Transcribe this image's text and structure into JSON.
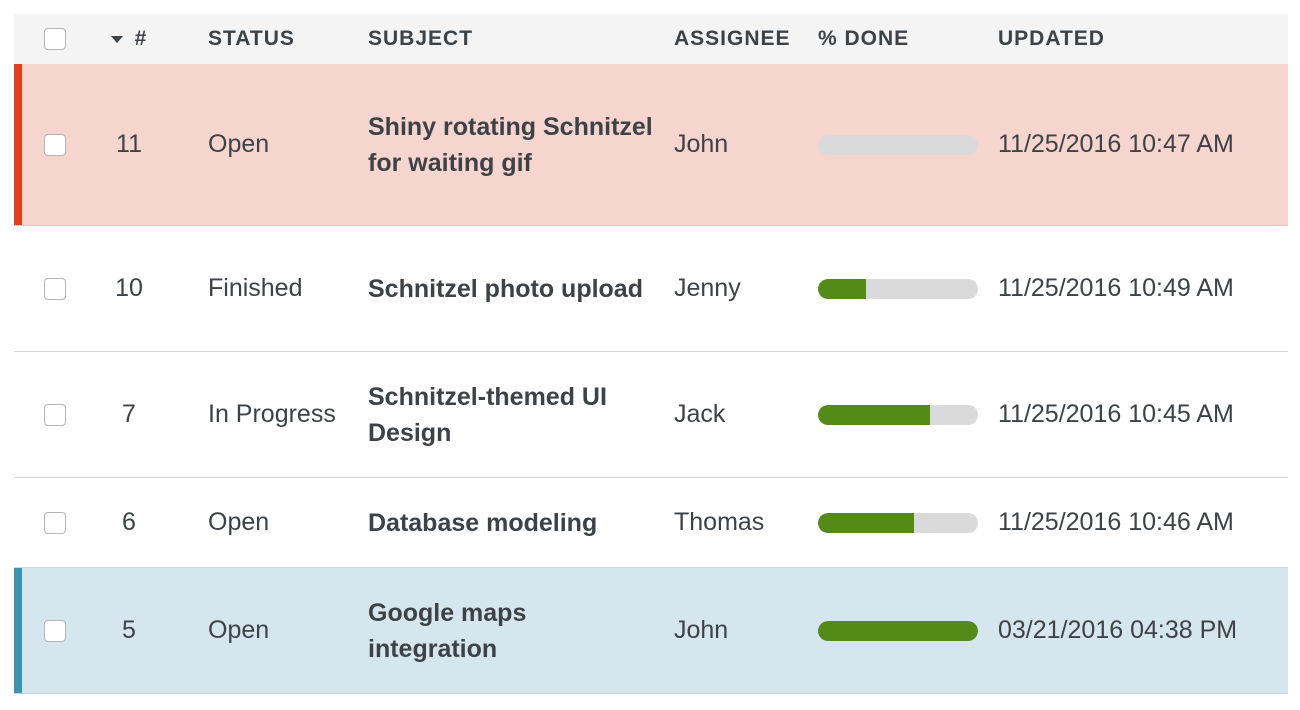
{
  "colors": {
    "header_bg": "#f4f4f4",
    "progress_fill": "#548a18",
    "progress_track": "#dadada",
    "highlight_red_bg": "#f7d5cf",
    "highlight_red_marker": "#e0401c",
    "highlight_blue_bg": "#d6e6ee",
    "highlight_blue_marker": "#3a93b1"
  },
  "table": {
    "columns": {
      "number": "#",
      "status": "STATUS",
      "subject": "SUBJECT",
      "assignee": "ASSIGNEE",
      "done": "% DONE",
      "updated": "UPDATED"
    },
    "sort_icon": "caret-down-icon",
    "rows": [
      {
        "number": "11",
        "status": "Open",
        "subject": "Shiny rotating Schnitzel for waiting gif",
        "assignee": "John",
        "done": 0,
        "updated": "11/25/2016 10:47 AM",
        "highlight": "red"
      },
      {
        "number": "10",
        "status": "Finished",
        "subject": "Schnitzel photo upload",
        "assignee": "Jenny",
        "done": 30,
        "updated": "11/25/2016 10:49 AM",
        "highlight": "none"
      },
      {
        "number": "7",
        "status": "In Progress",
        "subject": "Schnitzel-themed UI Design",
        "assignee": "Jack",
        "done": 70,
        "updated": "11/25/2016 10:45 AM",
        "highlight": "none"
      },
      {
        "number": "6",
        "status": "Open",
        "subject": "Database modeling",
        "assignee": "Thomas",
        "done": 60,
        "updated": "11/25/2016 10:46 AM",
        "highlight": "none"
      },
      {
        "number": "5",
        "status": "Open",
        "subject": "Google maps integration",
        "assignee": "John",
        "done": 100,
        "updated": "03/21/2016 04:38 PM",
        "highlight": "blue"
      }
    ]
  }
}
